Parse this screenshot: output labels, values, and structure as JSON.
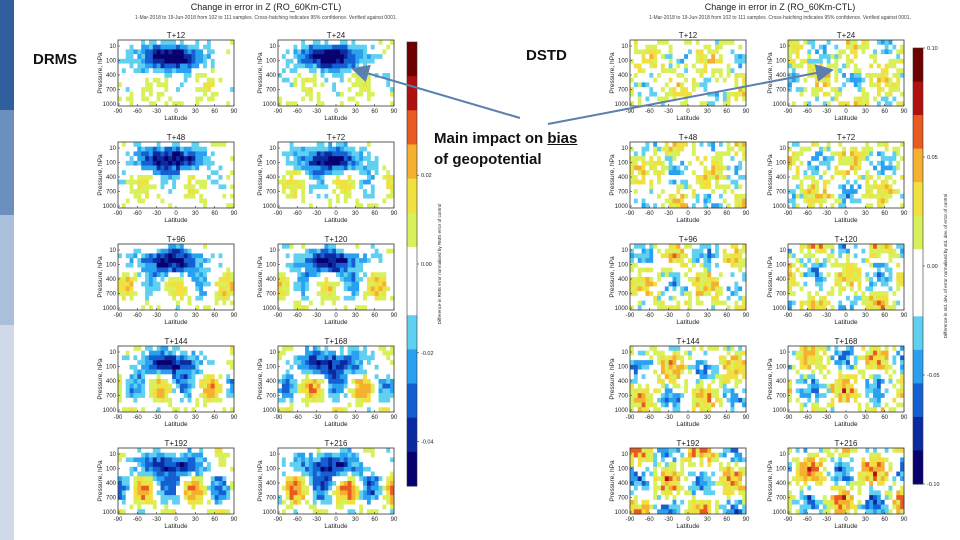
{
  "slide": {
    "drms_label": "DRMS",
    "dstd_label": "DSTD",
    "annotation_line1": "Main impact on ",
    "annotation_bias": "bias",
    "annotation_line2": "of geopotential"
  },
  "colors": {
    "sidebar": "#cfd9e8",
    "sidebar_accents": [
      "#2f5f9c",
      "#6b8fbf",
      "#a9bfdb"
    ],
    "arrow": "#5b7fae"
  },
  "chart_data": [
    {
      "type": "heatmap",
      "name": "DRMS",
      "title": "Change in error in Z (RO_60Km-CTL)",
      "subtitle": "1-Mar-2018 to 19-Jun-2018 from 102 to 111 samples. Cross-hatching indicates 95% confidence. Verified against 0001.",
      "xlabel": "Latitude",
      "ylabel": "Pressure, hPa",
      "x_ticks": [
        "-90",
        "-60",
        "-30",
        "0",
        "30",
        "60",
        "90"
      ],
      "y_ticks": [
        "10",
        "100",
        "400",
        "700",
        "1000"
      ],
      "xlim": [
        -90,
        90
      ],
      "ylim": [
        1000,
        1
      ],
      "colorbar_label": "Difference in RMS error normalised by RMS error of control",
      "colorbar_ticks": [
        "0.02",
        "0.00",
        "-0.02",
        "-0.04"
      ],
      "colorbar_range": [
        -0.05,
        0.05
      ],
      "panels": [
        {
          "label": "T+12"
        },
        {
          "label": "T+24"
        },
        {
          "label": "T+48"
        },
        {
          "label": "T+72"
        },
        {
          "label": "T+96"
        },
        {
          "label": "T+120"
        },
        {
          "label": "T+144"
        },
        {
          "label": "T+168"
        },
        {
          "label": "T+192"
        },
        {
          "label": "T+216"
        }
      ]
    },
    {
      "type": "heatmap",
      "name": "DSTD",
      "title": "Change in error in Z (RO_60Km-CTL)",
      "subtitle": "1-Mar-2018 to 19-Jun-2018 from 102 to 111 samples. Cross-hatching indicates 95% confidence. Verified against 0001.",
      "xlabel": "Latitude",
      "ylabel": "Pressure, hPa",
      "x_ticks": [
        "-90",
        "-60",
        "-30",
        "0",
        "30",
        "60",
        "90"
      ],
      "y_ticks": [
        "10",
        "100",
        "400",
        "700",
        "1000"
      ],
      "xlim": [
        -90,
        90
      ],
      "ylim": [
        1000,
        1
      ],
      "colorbar_label": "Difference in std. dev. of error normalised by std. dev. of error of control",
      "colorbar_ticks": [
        "0.10",
        "0.05",
        "0.00",
        "-0.05",
        "-0.10"
      ],
      "colorbar_range": [
        -0.1,
        0.1
      ],
      "panels": [
        {
          "label": "T+12"
        },
        {
          "label": "T+24"
        },
        {
          "label": "T+48"
        },
        {
          "label": "T+72"
        },
        {
          "label": "T+96"
        },
        {
          "label": "T+120"
        },
        {
          "label": "T+144"
        },
        {
          "label": "T+168"
        },
        {
          "label": "T+192"
        },
        {
          "label": "T+216"
        }
      ]
    }
  ]
}
